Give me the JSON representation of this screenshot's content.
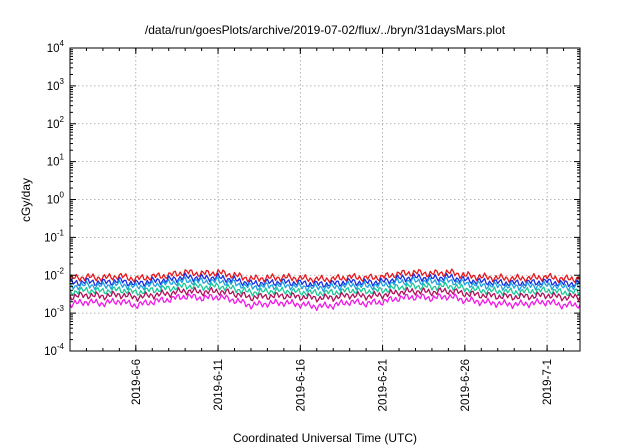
{
  "chart_data": {
    "type": "line",
    "title": "/data/run/goesPlots/archive/2019-07-02/flux/../bryn/31daysMars.plot",
    "xlabel": "Coordinated Universal Time (UTC)",
    "ylabel": "cGy/day",
    "yscale": "log",
    "ylim": [
      0.0001,
      10000
    ],
    "xlim": [
      "2019-06-02",
      "2019-07-03"
    ],
    "grid": true,
    "x_ticks": [
      {
        "date": "2019-06-06",
        "label": "2019-6-6"
      },
      {
        "date": "2019-06-11",
        "label": "2019-6-11"
      },
      {
        "date": "2019-06-16",
        "label": "2019-6-16"
      },
      {
        "date": "2019-06-21",
        "label": "2019-6-21"
      },
      {
        "date": "2019-06-26",
        "label": "2019-6-26"
      },
      {
        "date": "2019-07-01",
        "label": "2019-7-1"
      }
    ],
    "y_ticks": [
      {
        "value": 0.0001,
        "base": "10",
        "exp": "-4"
      },
      {
        "value": 0.001,
        "base": "10",
        "exp": "-3"
      },
      {
        "value": 0.01,
        "base": "10",
        "exp": "-2"
      },
      {
        "value": 0.1,
        "base": "10",
        "exp": "-1"
      },
      {
        "value": 1,
        "base": "10",
        "exp": "0"
      },
      {
        "value": 10,
        "base": "10",
        "exp": "1"
      },
      {
        "value": 100,
        "base": "10",
        "exp": "2"
      },
      {
        "value": 1000,
        "base": "10",
        "exp": "3"
      },
      {
        "value": 10000,
        "base": "10",
        "exp": "4"
      }
    ],
    "series": [
      {
        "color": "#e8161b",
        "x": [
          "2019-06-02",
          "2019-06-03",
          "2019-06-04",
          "2019-06-05",
          "2019-06-06",
          "2019-06-07",
          "2019-06-08",
          "2019-06-09",
          "2019-06-10",
          "2019-06-11",
          "2019-06-12",
          "2019-06-13",
          "2019-06-14",
          "2019-06-15",
          "2019-06-16",
          "2019-06-17",
          "2019-06-18",
          "2019-06-19",
          "2019-06-20",
          "2019-06-21",
          "2019-06-22",
          "2019-06-23",
          "2019-06-24",
          "2019-06-25",
          "2019-06-26",
          "2019-06-27",
          "2019-06-28",
          "2019-06-29",
          "2019-06-30",
          "2019-07-01",
          "2019-07-02",
          "2019-07-03"
        ],
        "y": [
          0.0082,
          0.009,
          0.0085,
          0.0095,
          0.008,
          0.0092,
          0.01,
          0.012,
          0.011,
          0.0118,
          0.01,
          0.008,
          0.0085,
          0.0088,
          0.0083,
          0.0078,
          0.008,
          0.009,
          0.0085,
          0.009,
          0.011,
          0.0118,
          0.011,
          0.012,
          0.01,
          0.009,
          0.0085,
          0.0082,
          0.0085,
          0.009,
          0.008,
          0.0082
        ]
      },
      {
        "color": "#1a2ee0",
        "x": [
          "2019-06-02",
          "2019-06-03",
          "2019-06-04",
          "2019-06-05",
          "2019-06-06",
          "2019-06-07",
          "2019-06-08",
          "2019-06-09",
          "2019-06-10",
          "2019-06-11",
          "2019-06-12",
          "2019-06-13",
          "2019-06-14",
          "2019-06-15",
          "2019-06-16",
          "2019-06-17",
          "2019-06-18",
          "2019-06-19",
          "2019-06-20",
          "2019-06-21",
          "2019-06-22",
          "2019-06-23",
          "2019-06-24",
          "2019-06-25",
          "2019-06-26",
          "2019-06-27",
          "2019-06-28",
          "2019-06-29",
          "2019-06-30",
          "2019-07-01",
          "2019-07-02",
          "2019-07-03"
        ],
        "y": [
          0.0062,
          0.0068,
          0.0064,
          0.0072,
          0.006,
          0.007,
          0.0076,
          0.009,
          0.0084,
          0.0088,
          0.0075,
          0.006,
          0.0064,
          0.0066,
          0.0062,
          0.0058,
          0.006,
          0.0068,
          0.0064,
          0.0068,
          0.0083,
          0.0088,
          0.0083,
          0.009,
          0.0075,
          0.0068,
          0.0064,
          0.0062,
          0.0064,
          0.0068,
          0.006,
          0.0062
        ]
      },
      {
        "color": "#1fa0e0",
        "x": [
          "2019-06-02",
          "2019-06-03",
          "2019-06-04",
          "2019-06-05",
          "2019-06-06",
          "2019-06-07",
          "2019-06-08",
          "2019-06-09",
          "2019-06-10",
          "2019-06-11",
          "2019-06-12",
          "2019-06-13",
          "2019-06-14",
          "2019-06-15",
          "2019-06-16",
          "2019-06-17",
          "2019-06-18",
          "2019-06-19",
          "2019-06-20",
          "2019-06-21",
          "2019-06-22",
          "2019-06-23",
          "2019-06-24",
          "2019-06-25",
          "2019-06-26",
          "2019-06-27",
          "2019-06-28",
          "2019-06-29",
          "2019-06-30",
          "2019-07-01",
          "2019-07-02",
          "2019-07-03"
        ],
        "y": [
          0.005,
          0.0055,
          0.0052,
          0.0058,
          0.0049,
          0.0056,
          0.0062,
          0.0072,
          0.0068,
          0.0071,
          0.0061,
          0.0049,
          0.0052,
          0.0054,
          0.005,
          0.0047,
          0.0049,
          0.0055,
          0.0052,
          0.0055,
          0.0067,
          0.0071,
          0.0067,
          0.0072,
          0.0061,
          0.0055,
          0.0052,
          0.005,
          0.0052,
          0.0055,
          0.0049,
          0.005
        ]
      },
      {
        "color": "#19c89a",
        "x": [
          "2019-06-02",
          "2019-06-03",
          "2019-06-04",
          "2019-06-05",
          "2019-06-06",
          "2019-06-07",
          "2019-06-08",
          "2019-06-09",
          "2019-06-10",
          "2019-06-11",
          "2019-06-12",
          "2019-06-13",
          "2019-06-14",
          "2019-06-15",
          "2019-06-16",
          "2019-06-17",
          "2019-06-18",
          "2019-06-19",
          "2019-06-20",
          "2019-06-21",
          "2019-06-22",
          "2019-06-23",
          "2019-06-24",
          "2019-06-25",
          "2019-06-26",
          "2019-06-27",
          "2019-06-28",
          "2019-06-29",
          "2019-06-30",
          "2019-07-01",
          "2019-07-02",
          "2019-07-03"
        ],
        "y": [
          0.0036,
          0.004,
          0.0038,
          0.0042,
          0.0035,
          0.0041,
          0.0045,
          0.0053,
          0.0049,
          0.0052,
          0.0044,
          0.0035,
          0.0038,
          0.0039,
          0.0036,
          0.0034,
          0.0035,
          0.004,
          0.0038,
          0.004,
          0.0049,
          0.0052,
          0.0049,
          0.0053,
          0.0044,
          0.004,
          0.0038,
          0.0036,
          0.0038,
          0.004,
          0.0035,
          0.0036
        ]
      },
      {
        "color": "#b0105a",
        "x": [
          "2019-06-02",
          "2019-06-03",
          "2019-06-04",
          "2019-06-05",
          "2019-06-06",
          "2019-06-07",
          "2019-06-08",
          "2019-06-09",
          "2019-06-10",
          "2019-06-11",
          "2019-06-12",
          "2019-06-13",
          "2019-06-14",
          "2019-06-15",
          "2019-06-16",
          "2019-06-17",
          "2019-06-18",
          "2019-06-19",
          "2019-06-20",
          "2019-06-21",
          "2019-06-22",
          "2019-06-23",
          "2019-06-24",
          "2019-06-25",
          "2019-06-26",
          "2019-06-27",
          "2019-06-28",
          "2019-06-29",
          "2019-06-30",
          "2019-07-01",
          "2019-07-02",
          "2019-07-03"
        ],
        "y": [
          0.0027,
          0.003,
          0.0028,
          0.0031,
          0.0026,
          0.003,
          0.0033,
          0.0039,
          0.0036,
          0.0038,
          0.0033,
          0.0026,
          0.0028,
          0.0029,
          0.0027,
          0.0025,
          0.0026,
          0.003,
          0.0028,
          0.003,
          0.0036,
          0.0038,
          0.0036,
          0.0039,
          0.0033,
          0.003,
          0.0028,
          0.0027,
          0.0028,
          0.003,
          0.0026,
          0.0027
        ]
      },
      {
        "color": "#f01ae6",
        "x": [
          "2019-06-02",
          "2019-06-03",
          "2019-06-04",
          "2019-06-05",
          "2019-06-06",
          "2019-06-07",
          "2019-06-08",
          "2019-06-09",
          "2019-06-10",
          "2019-06-11",
          "2019-06-12",
          "2019-06-13",
          "2019-06-14",
          "2019-06-15",
          "2019-06-16",
          "2019-06-17",
          "2019-06-18",
          "2019-06-19",
          "2019-06-20",
          "2019-06-21",
          "2019-06-22",
          "2019-06-23",
          "2019-06-24",
          "2019-06-25",
          "2019-06-26",
          "2019-06-27",
          "2019-06-28",
          "2019-06-29",
          "2019-06-30",
          "2019-07-01",
          "2019-07-02",
          "2019-07-03"
        ],
        "y": [
          0.0017,
          0.002,
          0.0018,
          0.0021,
          0.0016,
          0.002,
          0.0023,
          0.0028,
          0.0025,
          0.0027,
          0.0022,
          0.0016,
          0.0018,
          0.0019,
          0.0017,
          0.0015,
          0.0016,
          0.002,
          0.0018,
          0.002,
          0.0025,
          0.0027,
          0.0025,
          0.0028,
          0.0022,
          0.002,
          0.0018,
          0.0017,
          0.0018,
          0.002,
          0.0016,
          0.0017
        ]
      }
    ]
  }
}
